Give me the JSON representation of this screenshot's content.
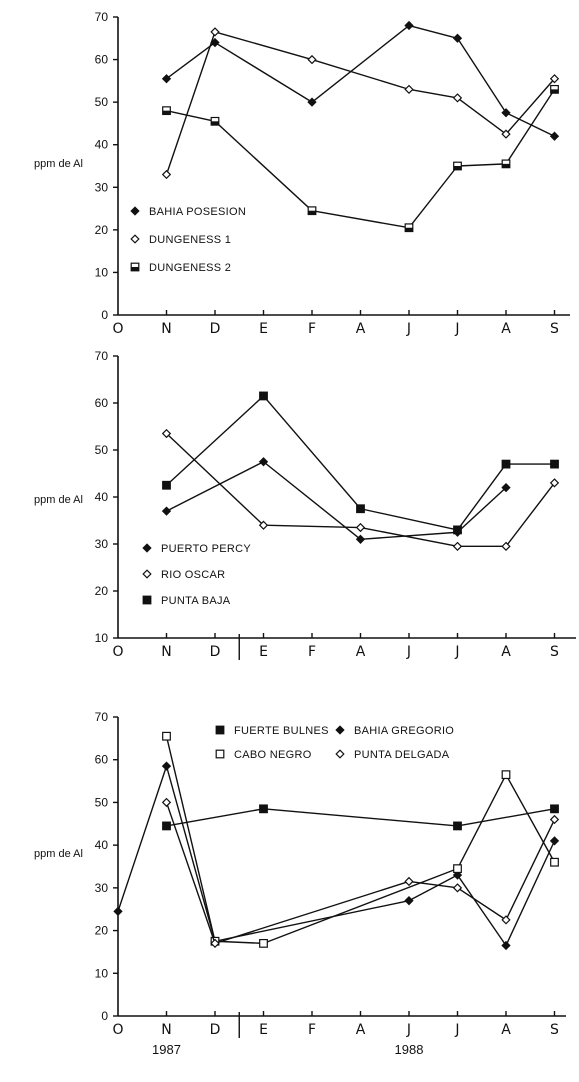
{
  "chart_data": [
    {
      "type": "line",
      "ylabel": "ppm de Al",
      "ylim": [
        0,
        70
      ],
      "yticks": [
        0,
        10,
        20,
        30,
        40,
        50,
        60,
        70
      ],
      "categories": [
        "O",
        "N",
        "D",
        "E",
        "F",
        "A",
        "J",
        "J",
        "A",
        "S"
      ],
      "legend_position": "left",
      "series": [
        {
          "name": "BAHIA POSESION",
          "marker": "diamond-filled",
          "points": [
            [
              1,
              55.5
            ],
            [
              2,
              64
            ],
            [
              4,
              50
            ],
            [
              6,
              68
            ],
            [
              7,
              65
            ],
            [
              8,
              47.5
            ],
            [
              9,
              42
            ]
          ]
        },
        {
          "name": "DUNGENESS 1",
          "marker": "diamond-open",
          "points": [
            [
              1,
              33
            ],
            [
              2,
              66.5
            ],
            [
              4,
              60
            ],
            [
              6,
              53
            ],
            [
              7,
              51
            ],
            [
              8,
              42.5
            ],
            [
              9,
              55.5
            ]
          ]
        },
        {
          "name": "DUNGENESS 2",
          "marker": "square-half",
          "points": [
            [
              1,
              48
            ],
            [
              2,
              45.5
            ],
            [
              4,
              24.5
            ],
            [
              6,
              20.5
            ],
            [
              7,
              35
            ],
            [
              8,
              35.5
            ],
            [
              9,
              53
            ]
          ]
        }
      ]
    },
    {
      "type": "line",
      "ylabel": "ppm de Al",
      "ylim": [
        10,
        70
      ],
      "yticks": [
        10,
        20,
        30,
        40,
        50,
        60,
        70
      ],
      "categories": [
        "O",
        "N",
        "D",
        "E",
        "F",
        "A",
        "J",
        "J",
        "A",
        "S"
      ],
      "legend_position": "left",
      "series": [
        {
          "name": "PUERTO PERCY",
          "marker": "diamond-filled",
          "points": [
            [
              1,
              37
            ],
            [
              3,
              47.5
            ],
            [
              5,
              31
            ],
            [
              7,
              32.5
            ],
            [
              8,
              42
            ]
          ]
        },
        {
          "name": "RIO OSCAR",
          "marker": "diamond-open",
          "points": [
            [
              1,
              53.5
            ],
            [
              3,
              34
            ],
            [
              5,
              33.5
            ],
            [
              7,
              29.5
            ],
            [
              8,
              29.5
            ],
            [
              9,
              43
            ]
          ]
        },
        {
          "name": "PUNTA BAJA",
          "marker": "square-filled",
          "points": [
            [
              1,
              42.5
            ],
            [
              3,
              61.5
            ],
            [
              5,
              37.5
            ],
            [
              7,
              33
            ],
            [
              8,
              47
            ],
            [
              9,
              47
            ]
          ]
        }
      ]
    },
    {
      "type": "line",
      "ylabel": "ppm de Al",
      "ylim": [
        0,
        70
      ],
      "yticks": [
        0,
        10,
        20,
        30,
        40,
        50,
        60,
        70
      ],
      "categories": [
        "O",
        "N",
        "D",
        "E",
        "F",
        "A",
        "J",
        "J",
        "A",
        "S"
      ],
      "legend_position": "top",
      "year_labels": [
        "1987",
        "1988"
      ],
      "series": [
        {
          "name": "FUERTE BULNES",
          "marker": "square-filled",
          "points": [
            [
              1,
              44.5
            ],
            [
              3,
              48.5
            ],
            [
              7,
              44.5
            ],
            [
              9,
              48.5
            ]
          ]
        },
        {
          "name": "BAHIA GREGORIO",
          "marker": "diamond-filled",
          "points": [
            [
              0,
              24.5
            ],
            [
              1,
              58.5
            ],
            [
              2,
              17.5
            ],
            [
              6,
              27
            ],
            [
              7,
              33
            ],
            [
              8,
              16.5
            ],
            [
              9,
              41
            ]
          ]
        },
        {
          "name": "CABO NEGRO",
          "marker": "square-open",
          "points": [
            [
              1,
              65.5
            ],
            [
              2,
              17.5
            ],
            [
              3,
              17
            ],
            [
              7,
              34.5
            ],
            [
              8,
              56.5
            ],
            [
              9,
              36
            ]
          ]
        },
        {
          "name": "PUNTA DELGADA",
          "marker": "diamond-open",
          "points": [
            [
              1,
              50
            ],
            [
              2,
              17
            ],
            [
              6,
              31.5
            ],
            [
              7,
              30
            ],
            [
              8,
              22.5
            ],
            [
              9,
              46
            ]
          ]
        }
      ]
    }
  ]
}
